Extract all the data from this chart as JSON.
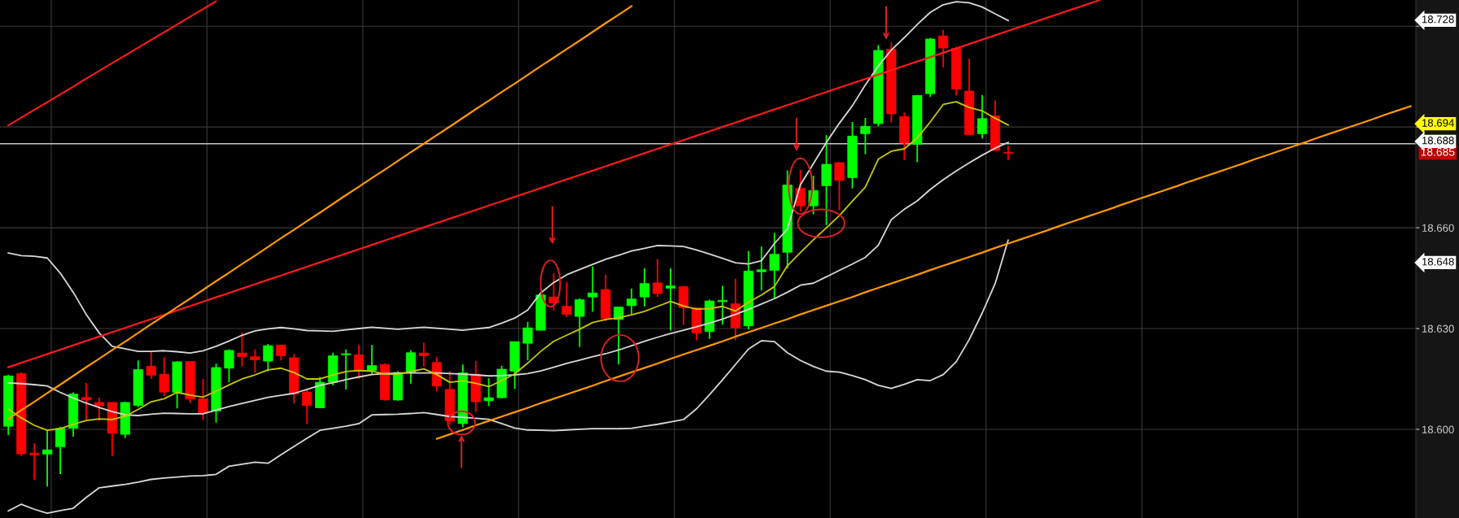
{
  "chart_data": {
    "type": "candlestick",
    "categories": [
      null,
      null,
      null,
      null,
      null,
      null,
      null,
      null,
      null,
      null,
      null,
      null,
      null,
      null,
      null,
      null,
      null,
      null,
      null,
      null,
      null,
      null,
      null,
      null,
      null,
      null,
      null,
      null,
      null,
      null,
      null,
      null,
      null,
      null,
      null,
      null,
      null,
      null,
      null,
      null,
      null,
      null,
      null,
      null,
      null,
      null,
      null,
      null,
      null,
      null,
      null,
      null,
      null,
      null,
      null,
      null,
      null,
      null,
      null,
      null,
      null,
      null,
      null,
      null,
      null,
      null,
      null,
      null,
      null,
      null,
      null,
      null,
      null,
      null,
      null,
      null,
      null,
      null,
      null,
      null,
      null,
      null,
      null,
      null,
      null,
      null,
      null,
      null,
      null,
      null,
      null,
      null,
      null,
      null,
      null,
      null,
      null,
      null,
      null,
      null,
      null,
      null,
      null,
      null,
      null,
      null,
      null,
      null,
      null
    ],
    "ohlc": [
      [
        18.6009,
        18.6162,
        18.5983,
        18.6159
      ],
      [
        18.6166,
        18.617,
        18.5921,
        18.5927
      ],
      [
        18.5929,
        18.5958,
        18.585,
        18.5924
      ],
      [
        18.5926,
        18.5997,
        18.583,
        18.5939
      ],
      [
        18.5948,
        18.6008,
        18.5867,
        18.6003
      ],
      [
        18.6003,
        18.611,
        18.5978,
        18.6105
      ],
      [
        18.6095,
        18.6138,
        18.6025,
        18.6087
      ],
      [
        18.608,
        18.6094,
        18.6025,
        18.607
      ],
      [
        18.608,
        18.608,
        18.5921,
        18.5988
      ],
      [
        18.5985,
        18.6082,
        18.5974,
        18.608
      ],
      [
        18.6071,
        18.6205,
        18.6066,
        18.6178
      ],
      [
        18.6188,
        18.6233,
        18.615,
        18.6161
      ],
      [
        18.6164,
        18.6214,
        18.6099,
        18.6111
      ],
      [
        18.611,
        18.6202,
        18.6062,
        18.6201
      ],
      [
        18.6202,
        18.6202,
        18.6078,
        18.609
      ],
      [
        18.6091,
        18.615,
        18.6028,
        18.6048
      ],
      [
        18.6054,
        18.6196,
        18.602,
        18.6184
      ],
      [
        18.6182,
        18.6238,
        18.614,
        18.6235
      ],
      [
        18.6227,
        18.6289,
        18.6187,
        18.6216
      ],
      [
        18.6216,
        18.6238,
        18.6168,
        18.6207
      ],
      [
        18.6203,
        18.6254,
        18.6173,
        18.6249
      ],
      [
        18.6251,
        18.6251,
        18.6205,
        18.6219
      ],
      [
        18.6213,
        18.6224,
        18.6077,
        18.6105
      ],
      [
        18.6111,
        18.6117,
        18.6016,
        18.6071
      ],
      [
        18.6064,
        18.6156,
        18.6063,
        18.614
      ],
      [
        18.614,
        18.6228,
        18.6131,
        18.6219
      ],
      [
        18.6222,
        18.6238,
        18.6119,
        18.6225
      ],
      [
        18.6222,
        18.6251,
        18.615,
        18.6173
      ],
      [
        18.6175,
        18.6251,
        18.6164,
        18.619
      ],
      [
        18.6193,
        18.6196,
        18.6085,
        18.6088
      ],
      [
        18.6087,
        18.6173,
        18.6085,
        18.6169
      ],
      [
        18.617,
        18.6235,
        18.6136,
        18.6228
      ],
      [
        18.6227,
        18.6258,
        18.6187,
        18.6219
      ],
      [
        18.6199,
        18.6215,
        18.6113,
        18.6129
      ],
      [
        18.6119,
        18.6173,
        18.6015,
        18.6025
      ],
      [
        18.6017,
        18.6193,
        18.6006,
        18.6168
      ],
      [
        18.6164,
        18.6203,
        18.6052,
        18.6082
      ],
      [
        18.6085,
        18.6152,
        18.6069,
        18.6094
      ],
      [
        18.6094,
        18.6189,
        18.6092,
        18.6179
      ],
      [
        18.6173,
        18.6261,
        18.612,
        18.6261
      ],
      [
        18.6256,
        18.632,
        18.6205,
        18.6302
      ],
      [
        18.6295,
        18.64,
        18.6294,
        18.64
      ],
      [
        18.6394,
        18.6465,
        18.6354,
        18.6376
      ],
      [
        18.6366,
        18.6439,
        18.6334,
        18.6342
      ],
      [
        18.6336,
        18.639,
        18.6245,
        18.6386
      ],
      [
        18.6394,
        18.6485,
        18.635,
        18.6406
      ],
      [
        18.6416,
        18.6461,
        18.6322,
        18.633
      ],
      [
        18.6327,
        18.6364,
        18.6193,
        18.6364
      ],
      [
        18.6368,
        18.6419,
        18.6342,
        18.6388
      ],
      [
        18.6394,
        18.6479,
        18.6366,
        18.6434
      ],
      [
        18.6436,
        18.6507,
        18.6394,
        18.6404
      ],
      [
        18.642,
        18.6479,
        18.6294,
        18.6427
      ],
      [
        18.6425,
        18.6427,
        18.6311,
        18.6362
      ],
      [
        18.6362,
        18.6362,
        18.6265,
        18.6287
      ],
      [
        18.6291,
        18.6386,
        18.6269,
        18.6382
      ],
      [
        18.638,
        18.6427,
        18.6311,
        18.6384
      ],
      [
        18.6374,
        18.6448,
        18.6265,
        18.6302
      ],
      [
        18.6308,
        18.6531,
        18.6298,
        18.6471
      ],
      [
        18.6469,
        18.6545,
        18.6413,
        18.6475
      ],
      [
        18.6473,
        18.6585,
        18.6389,
        18.6521
      ],
      [
        18.6527,
        18.6771,
        18.6479,
        18.6727
      ],
      [
        18.6717,
        18.6773,
        18.6648,
        18.6665
      ],
      [
        18.6665,
        18.6755,
        18.664,
        18.6711
      ],
      [
        18.6725,
        18.6876,
        18.6608,
        18.6789
      ],
      [
        18.6794,
        18.6795,
        18.6652,
        18.6741
      ],
      [
        18.6749,
        18.6915,
        18.6717,
        18.6873
      ],
      [
        18.688,
        18.6927,
        18.6819,
        18.6902
      ],
      [
        18.691,
        18.7144,
        18.6902,
        18.7128
      ],
      [
        18.7132,
        18.7152,
        18.6913,
        18.6939
      ],
      [
        18.6931,
        18.6943,
        18.6802,
        18.6852
      ],
      [
        18.6848,
        18.6995,
        18.6795,
        18.6994
      ],
      [
        18.6999,
        18.7165,
        18.6989,
        18.7162
      ],
      [
        18.7171,
        18.7189,
        18.7077,
        18.7135
      ],
      [
        18.7134,
        18.7139,
        18.6994,
        18.7013
      ],
      [
        18.7007,
        18.7104,
        18.6877,
        18.6877
      ],
      [
        18.688,
        18.6995,
        18.6866,
        18.6925
      ],
      [
        18.6933,
        18.6979,
        18.683,
        18.683
      ],
      [
        18.6824,
        18.6844,
        18.6802,
        18.6822
      ],
      null,
      null,
      null,
      null,
      null,
      null,
      null,
      null,
      null,
      null,
      null,
      null,
      null,
      null,
      null,
      null,
      null,
      null,
      null,
      null,
      null,
      null,
      null,
      null,
      null,
      null,
      null,
      null,
      null,
      null,
      null
    ],
    "series": [
      {
        "type": "line",
        "color": "#d8d8d8",
        "values": [
          18.6525,
          18.6517,
          18.6515,
          18.651,
          18.6465,
          18.6408,
          18.6342,
          18.6287,
          18.6247,
          18.624,
          18.6232,
          18.6232,
          18.6234,
          18.6231,
          18.6227,
          18.6234,
          18.6247,
          18.6263,
          18.628,
          18.6293,
          18.6299,
          18.6303,
          18.6299,
          18.6294,
          18.6293,
          18.6292,
          18.6296,
          18.63,
          18.6304,
          18.6301,
          18.6298,
          18.6301,
          18.6304,
          18.6301,
          18.6298,
          18.6295,
          18.6299,
          18.6303,
          18.6316,
          18.6331,
          18.6355,
          18.6406,
          18.6437,
          18.646,
          18.6476,
          18.6491,
          18.6506,
          18.6518,
          18.6531,
          18.6539,
          18.6547,
          18.6546,
          18.6544,
          18.6534,
          18.6522,
          18.6509,
          18.6496,
          18.6492,
          18.6502,
          18.6553,
          18.6596,
          18.6728,
          18.6791,
          18.6854,
          18.6911,
          18.6963,
          18.7025,
          18.7081,
          18.7129,
          18.7166,
          18.7205,
          18.7241,
          18.7264,
          18.7273,
          18.727,
          18.7257,
          18.7237,
          18.7217,
          null,
          null,
          null,
          null,
          null,
          null,
          null,
          null,
          null,
          null,
          null,
          null,
          null,
          null,
          null,
          null,
          null,
          null,
          null,
          null,
          null,
          null,
          null,
          null,
          null,
          null,
          null,
          null,
          null,
          null,
          null
        ]
      },
      {
        "type": "line",
        "color": "#d8d8d8",
        "values": [
          18.6138,
          18.6136,
          18.6133,
          18.6129,
          18.611,
          18.6093,
          18.6078,
          18.6065,
          18.6053,
          18.6043,
          18.6041,
          18.6045,
          18.6048,
          18.6047,
          18.6046,
          18.6046,
          18.6057,
          18.6068,
          18.6077,
          18.6086,
          18.6095,
          18.6101,
          18.6107,
          18.6119,
          18.6131,
          18.6139,
          18.6148,
          18.6156,
          18.6163,
          18.6166,
          18.6167,
          18.6168,
          18.6168,
          18.6168,
          18.6166,
          18.6164,
          18.6162,
          18.6159,
          18.616,
          18.6162,
          18.6166,
          18.6174,
          18.6185,
          18.6196,
          18.6206,
          18.6216,
          18.6225,
          18.6236,
          18.6249,
          18.6262,
          18.6274,
          18.6285,
          18.6295,
          18.6305,
          18.6316,
          18.6328,
          18.6342,
          18.6357,
          18.6373,
          18.6389,
          18.6408,
          18.6429,
          18.6435,
          18.6454,
          18.6473,
          18.6492,
          18.6512,
          18.6548,
          18.6624,
          18.6655,
          18.668,
          18.6714,
          18.6743,
          18.6769,
          18.6793,
          18.6816,
          18.6837,
          18.6854,
          null,
          null,
          null,
          null,
          null,
          null,
          null,
          null,
          null,
          null,
          null,
          null,
          null,
          null,
          null,
          null,
          null,
          null,
          null,
          null,
          null,
          null,
          null,
          null,
          null,
          null,
          null,
          null,
          null,
          null,
          null
        ]
      },
      {
        "type": "line",
        "color": "#c8c800",
        "values": [
          18.606,
          18.6034,
          18.6012,
          18.5997,
          18.6002,
          18.6015,
          18.6026,
          18.6031,
          18.6029,
          18.6039,
          18.6059,
          18.6082,
          18.6091,
          18.611,
          18.6102,
          18.6096,
          18.6113,
          18.6132,
          18.615,
          18.6162,
          18.6177,
          18.6182,
          18.6169,
          18.615,
          18.615,
          18.6162,
          18.6172,
          18.6175,
          18.6173,
          18.6164,
          18.6164,
          18.6172,
          18.618,
          18.6163,
          18.614,
          18.6144,
          18.6137,
          18.6127,
          18.6145,
          18.6165,
          18.6197,
          18.6232,
          18.6262,
          18.628,
          18.6298,
          18.6318,
          18.6327,
          18.6332,
          18.6341,
          18.6351,
          18.6366,
          18.6381,
          18.6367,
          18.6358,
          18.6359,
          18.6366,
          18.6352,
          18.6378,
          18.64,
          18.6425,
          18.6487,
          18.6526,
          18.6564,
          18.66,
          18.6636,
          18.6679,
          18.6721,
          18.6804,
          18.6828,
          18.6835,
          18.6867,
          18.6915,
          18.6967,
          18.6975,
          18.6958,
          18.6948,
          18.6926,
          18.6906,
          null,
          null,
          null,
          null,
          null,
          null,
          null,
          null,
          null,
          null,
          null,
          null,
          null,
          null,
          null,
          null,
          null,
          null,
          null,
          null,
          null,
          null,
          null,
          null,
          null,
          null,
          null,
          null,
          null,
          null,
          null
        ]
      },
      {
        "type": "line",
        "color": "#d8d8d8",
        "values": [
          18.5757,
          18.5777,
          18.5762,
          18.575,
          18.5758,
          18.5765,
          18.5797,
          18.5826,
          18.5831,
          18.5836,
          18.5843,
          18.5851,
          18.5855,
          18.5858,
          18.5861,
          18.5862,
          18.5866,
          18.589,
          18.5896,
          18.5902,
          18.5899,
          18.5924,
          18.5949,
          18.5973,
          18.5997,
          18.6003,
          18.6009,
          18.6017,
          18.6043,
          18.6044,
          18.6045,
          18.6047,
          18.605,
          18.6044,
          18.6038,
          18.6036,
          18.6033,
          18.603,
          18.6017,
          18.6004,
          18.5998,
          18.5997,
          18.5996,
          18.5998,
          18.6,
          18.6002,
          18.6002,
          18.6002,
          18.6003,
          18.6009,
          18.6015,
          18.6022,
          18.6029,
          18.6061,
          18.6103,
          18.6147,
          18.6193,
          18.6239,
          18.6264,
          18.6261,
          18.6228,
          18.6205,
          18.6187,
          18.6173,
          18.617,
          18.616,
          18.6148,
          18.6131,
          18.6122,
          18.6134,
          18.6148,
          18.6145,
          18.6163,
          18.6201,
          18.6267,
          18.6346,
          18.6434,
          18.6563,
          null,
          null,
          null,
          null,
          null,
          null,
          null,
          null,
          null,
          null,
          null,
          null,
          null,
          null,
          null,
          null,
          null,
          null,
          null,
          null,
          null,
          null,
          null,
          null,
          null,
          null,
          null,
          null,
          null,
          null,
          null
        ]
      },
      {
        "type": "line",
        "color": "#ff1a1a",
        "values": [
          18.6905,
          18.6928,
          18.6951,
          18.6974,
          18.6997,
          18.702,
          18.7044,
          18.7067,
          18.709,
          18.7113,
          18.7136,
          18.7159,
          18.7182,
          18.7205,
          18.7228,
          18.7251,
          18.7274,
          null,
          null,
          null,
          null,
          null,
          null,
          null,
          null,
          null,
          null,
          null,
          null,
          null,
          null,
          null,
          null,
          null,
          null,
          null,
          null,
          null,
          null,
          null,
          null,
          null,
          null,
          null,
          null,
          null,
          null,
          null,
          null,
          null,
          null,
          null,
          null,
          null,
          null,
          null,
          null,
          null,
          null,
          null,
          null,
          null,
          null,
          null,
          null,
          null,
          null,
          null,
          null,
          null,
          null,
          null,
          null,
          null,
          null,
          null,
          null,
          null,
          null,
          null,
          null,
          null,
          null,
          null,
          null,
          null,
          null,
          null,
          null,
          null,
          null,
          null,
          null,
          null,
          null,
          null,
          null,
          null,
          null,
          null,
          null,
          null,
          null,
          null,
          null,
          null,
          null,
          null,
          null
        ]
      },
      {
        "type": "line",
        "color": "#ff1a1a",
        "values": [
          18.6185,
          18.6198,
          18.6211,
          18.6224,
          18.6237,
          18.625,
          18.6263,
          18.6276,
          18.6289,
          18.6302,
          18.6315,
          18.6328,
          18.6341,
          18.6354,
          18.6367,
          18.638,
          18.6393,
          18.6406,
          18.6419,
          18.6432,
          18.6445,
          18.6458,
          18.6471,
          18.6484,
          18.6497,
          18.651,
          18.6523,
          18.6536,
          18.6549,
          18.6562,
          18.6575,
          18.6588,
          18.6601,
          18.6614,
          18.6627,
          18.664,
          18.6653,
          18.6666,
          18.6679,
          18.6692,
          18.6705,
          18.6718,
          18.6731,
          18.6744,
          18.6757,
          18.677,
          18.6783,
          18.6796,
          18.6809,
          18.6822,
          18.6835,
          18.6848,
          18.6861,
          18.6874,
          18.6887,
          18.69,
          18.6913,
          18.6926,
          18.6939,
          18.6952,
          18.6965,
          18.6978,
          18.6991,
          18.7004,
          18.7017,
          18.703,
          18.7043,
          18.7056,
          18.7069,
          18.7082,
          18.7095,
          18.7108,
          18.7121,
          18.7134,
          18.7147,
          18.716,
          18.7173,
          18.7186,
          18.7199,
          18.7212,
          18.7225,
          18.7238,
          18.7251,
          18.7264,
          18.7277,
          null,
          null,
          null,
          null,
          null,
          null,
          null,
          null,
          null,
          null,
          null,
          null,
          null,
          null,
          null,
          null,
          null,
          null,
          null,
          null,
          null,
          null,
          null,
          null
        ]
      },
      {
        "type": "line",
        "color": "#ff9900",
        "values": [
          18.6031,
          18.6057,
          18.6082,
          18.6108,
          18.6133,
          18.6159,
          18.6185,
          18.621,
          18.6236,
          18.6261,
          18.6287,
          18.6313,
          18.6338,
          18.6364,
          18.6389,
          18.6415,
          18.6441,
          18.6466,
          18.6492,
          18.6517,
          18.6543,
          18.6569,
          18.6594,
          18.662,
          18.6645,
          18.6671,
          18.6697,
          18.6722,
          18.6748,
          18.6773,
          18.6799,
          18.6825,
          18.685,
          18.6876,
          18.6901,
          18.6927,
          18.6953,
          18.6978,
          18.7004,
          18.7029,
          18.7055,
          18.7081,
          18.7106,
          18.7132,
          18.7157,
          18.7183,
          18.7209,
          18.7234,
          18.726,
          null,
          null,
          null,
          null,
          null,
          null,
          null,
          null,
          null,
          null,
          null,
          null,
          null,
          null,
          null,
          null,
          null,
          null,
          null,
          null,
          null,
          null,
          null,
          null,
          null,
          null,
          null,
          null,
          null,
          null,
          null,
          null,
          null,
          null,
          null,
          null,
          null,
          null,
          null,
          null,
          null,
          null,
          null,
          null,
          null,
          null,
          null,
          null,
          null,
          null,
          null,
          null,
          null,
          null,
          null,
          null,
          null,
          null,
          null,
          null
        ]
      },
      {
        "type": "line",
        "color": "#ff9900",
        "values": [
          null,
          null,
          null,
          null,
          null,
          null,
          null,
          null,
          null,
          null,
          null,
          null,
          null,
          null,
          null,
          null,
          null,
          null,
          null,
          null,
          null,
          null,
          null,
          null,
          null,
          null,
          null,
          null,
          null,
          null,
          null,
          null,
          null,
          18.5972,
          18.5985,
          18.5998,
          18.6012,
          18.6025,
          18.6038,
          18.6051,
          18.6064,
          18.6078,
          18.6091,
          18.6104,
          18.6117,
          18.613,
          18.6144,
          18.6157,
          18.617,
          18.6183,
          18.6196,
          18.621,
          18.6223,
          18.6236,
          18.6249,
          18.6262,
          18.6276,
          18.6289,
          18.6302,
          18.6315,
          18.6328,
          18.6342,
          18.6355,
          18.6368,
          18.6381,
          18.6394,
          18.6408,
          18.6421,
          18.6434,
          18.6447,
          18.646,
          18.6474,
          18.6487,
          18.65,
          18.6513,
          18.6526,
          18.654,
          18.6553,
          18.6566,
          18.6579,
          18.6592,
          18.6606,
          18.6619,
          18.6632,
          18.6645,
          18.6658,
          18.6672,
          18.6685,
          18.6698,
          18.6711,
          18.6724,
          18.6738,
          18.6751,
          18.6764,
          18.6777,
          18.679,
          18.6804,
          18.6817,
          18.683,
          18.6843,
          18.6856,
          18.687,
          18.6883,
          18.6896,
          18.6909,
          18.6922,
          18.6936,
          18.6949,
          18.6962
        ]
      }
    ],
    "ylim": [
      18.5736,
      18.7278
    ],
    "yticks": [
      {
        "value": 18.6,
        "label": "18.600"
      },
      {
        "value": 18.63,
        "label": "18.630"
      },
      {
        "value": 18.66,
        "label": "18.660"
      },
      {
        "value": 18.69,
        "label": null
      },
      {
        "value": 18.72,
        "label": null
      }
    ],
    "tick_labels": "y",
    "grid": true,
    "ref_lines": [
      {
        "axis": "y",
        "value": 18.685,
        "label": "18.685",
        "color": "#c8c8c8"
      }
    ],
    "annotations": [
      "18.728",
      "18.694",
      "18.688",
      "18.648"
    ]
  }
}
